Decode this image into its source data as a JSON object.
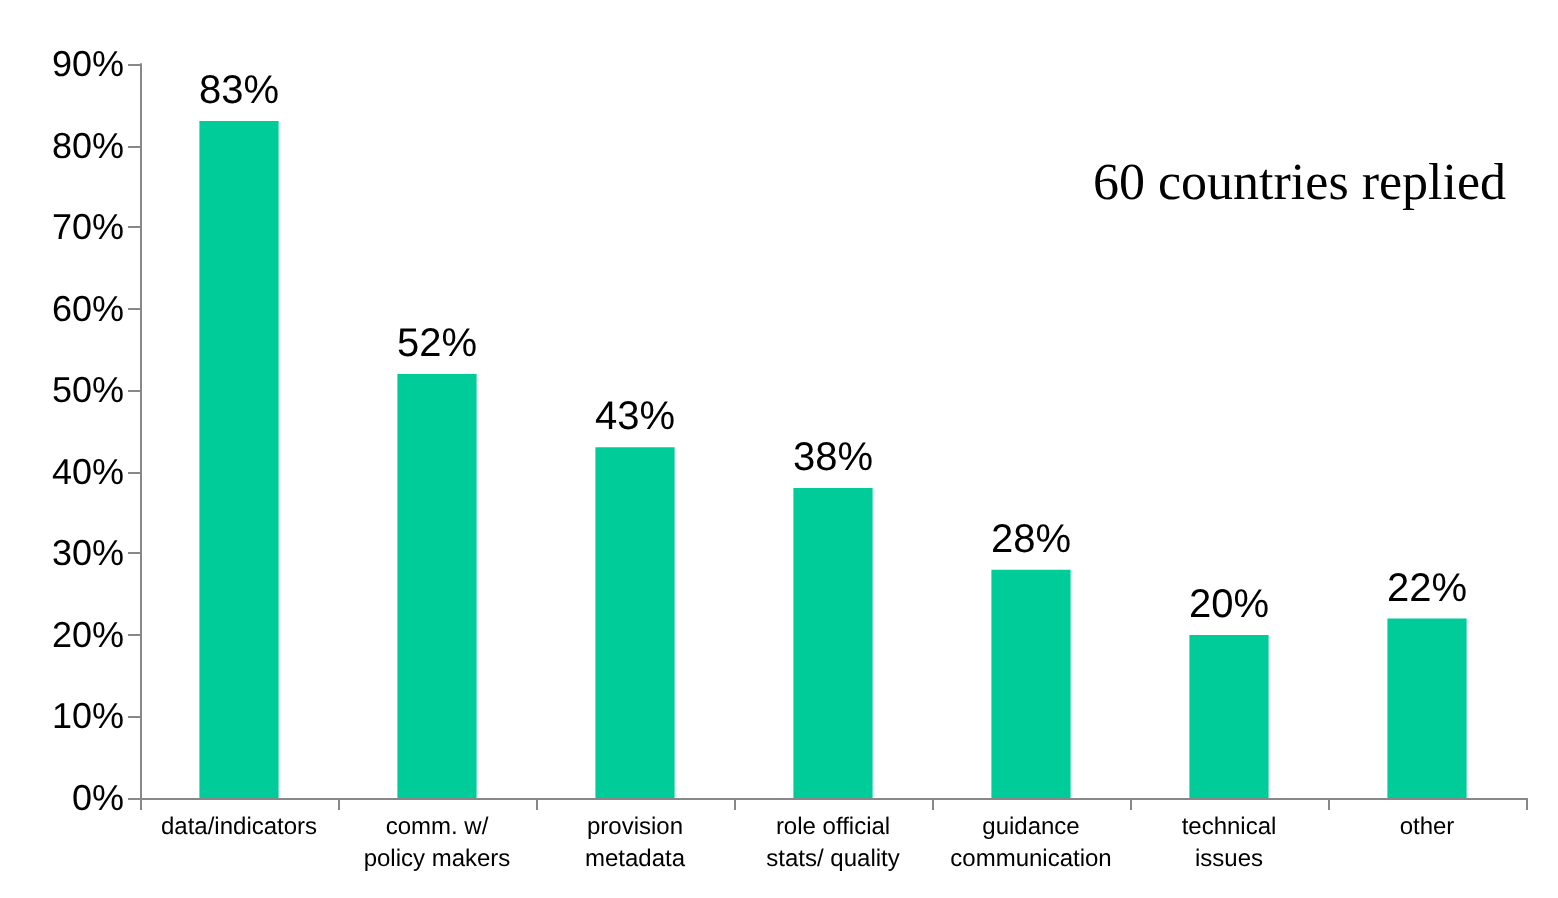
{
  "chart_data": {
    "type": "bar",
    "categories": [
      "data/indicators",
      "comm. w/\npolicy makers",
      "provision\nmetadata",
      "role official\nstats/ quality",
      "guidance\ncommunication",
      "technical\nissues",
      "other"
    ],
    "values": [
      83,
      52,
      43,
      38,
      28,
      20,
      22
    ],
    "value_labels": [
      "83%",
      "52%",
      "43%",
      "38%",
      "28%",
      "20%",
      "22%"
    ],
    "color": "#00cc99",
    "ylim": [
      0,
      90
    ],
    "yticks": [
      {
        "value": 0,
        "label": "0%"
      },
      {
        "value": 10,
        "label": "10%"
      },
      {
        "value": 20,
        "label": "20%"
      },
      {
        "value": 30,
        "label": "30%"
      },
      {
        "value": 40,
        "label": "40%"
      },
      {
        "value": 50,
        "label": "50%"
      },
      {
        "value": 60,
        "label": "60%"
      },
      {
        "value": 70,
        "label": "70%"
      },
      {
        "value": 80,
        "label": "80%"
      },
      {
        "value": 90,
        "label": "90%"
      }
    ],
    "grid": false,
    "annotations": [
      "60 countries replied"
    ]
  }
}
